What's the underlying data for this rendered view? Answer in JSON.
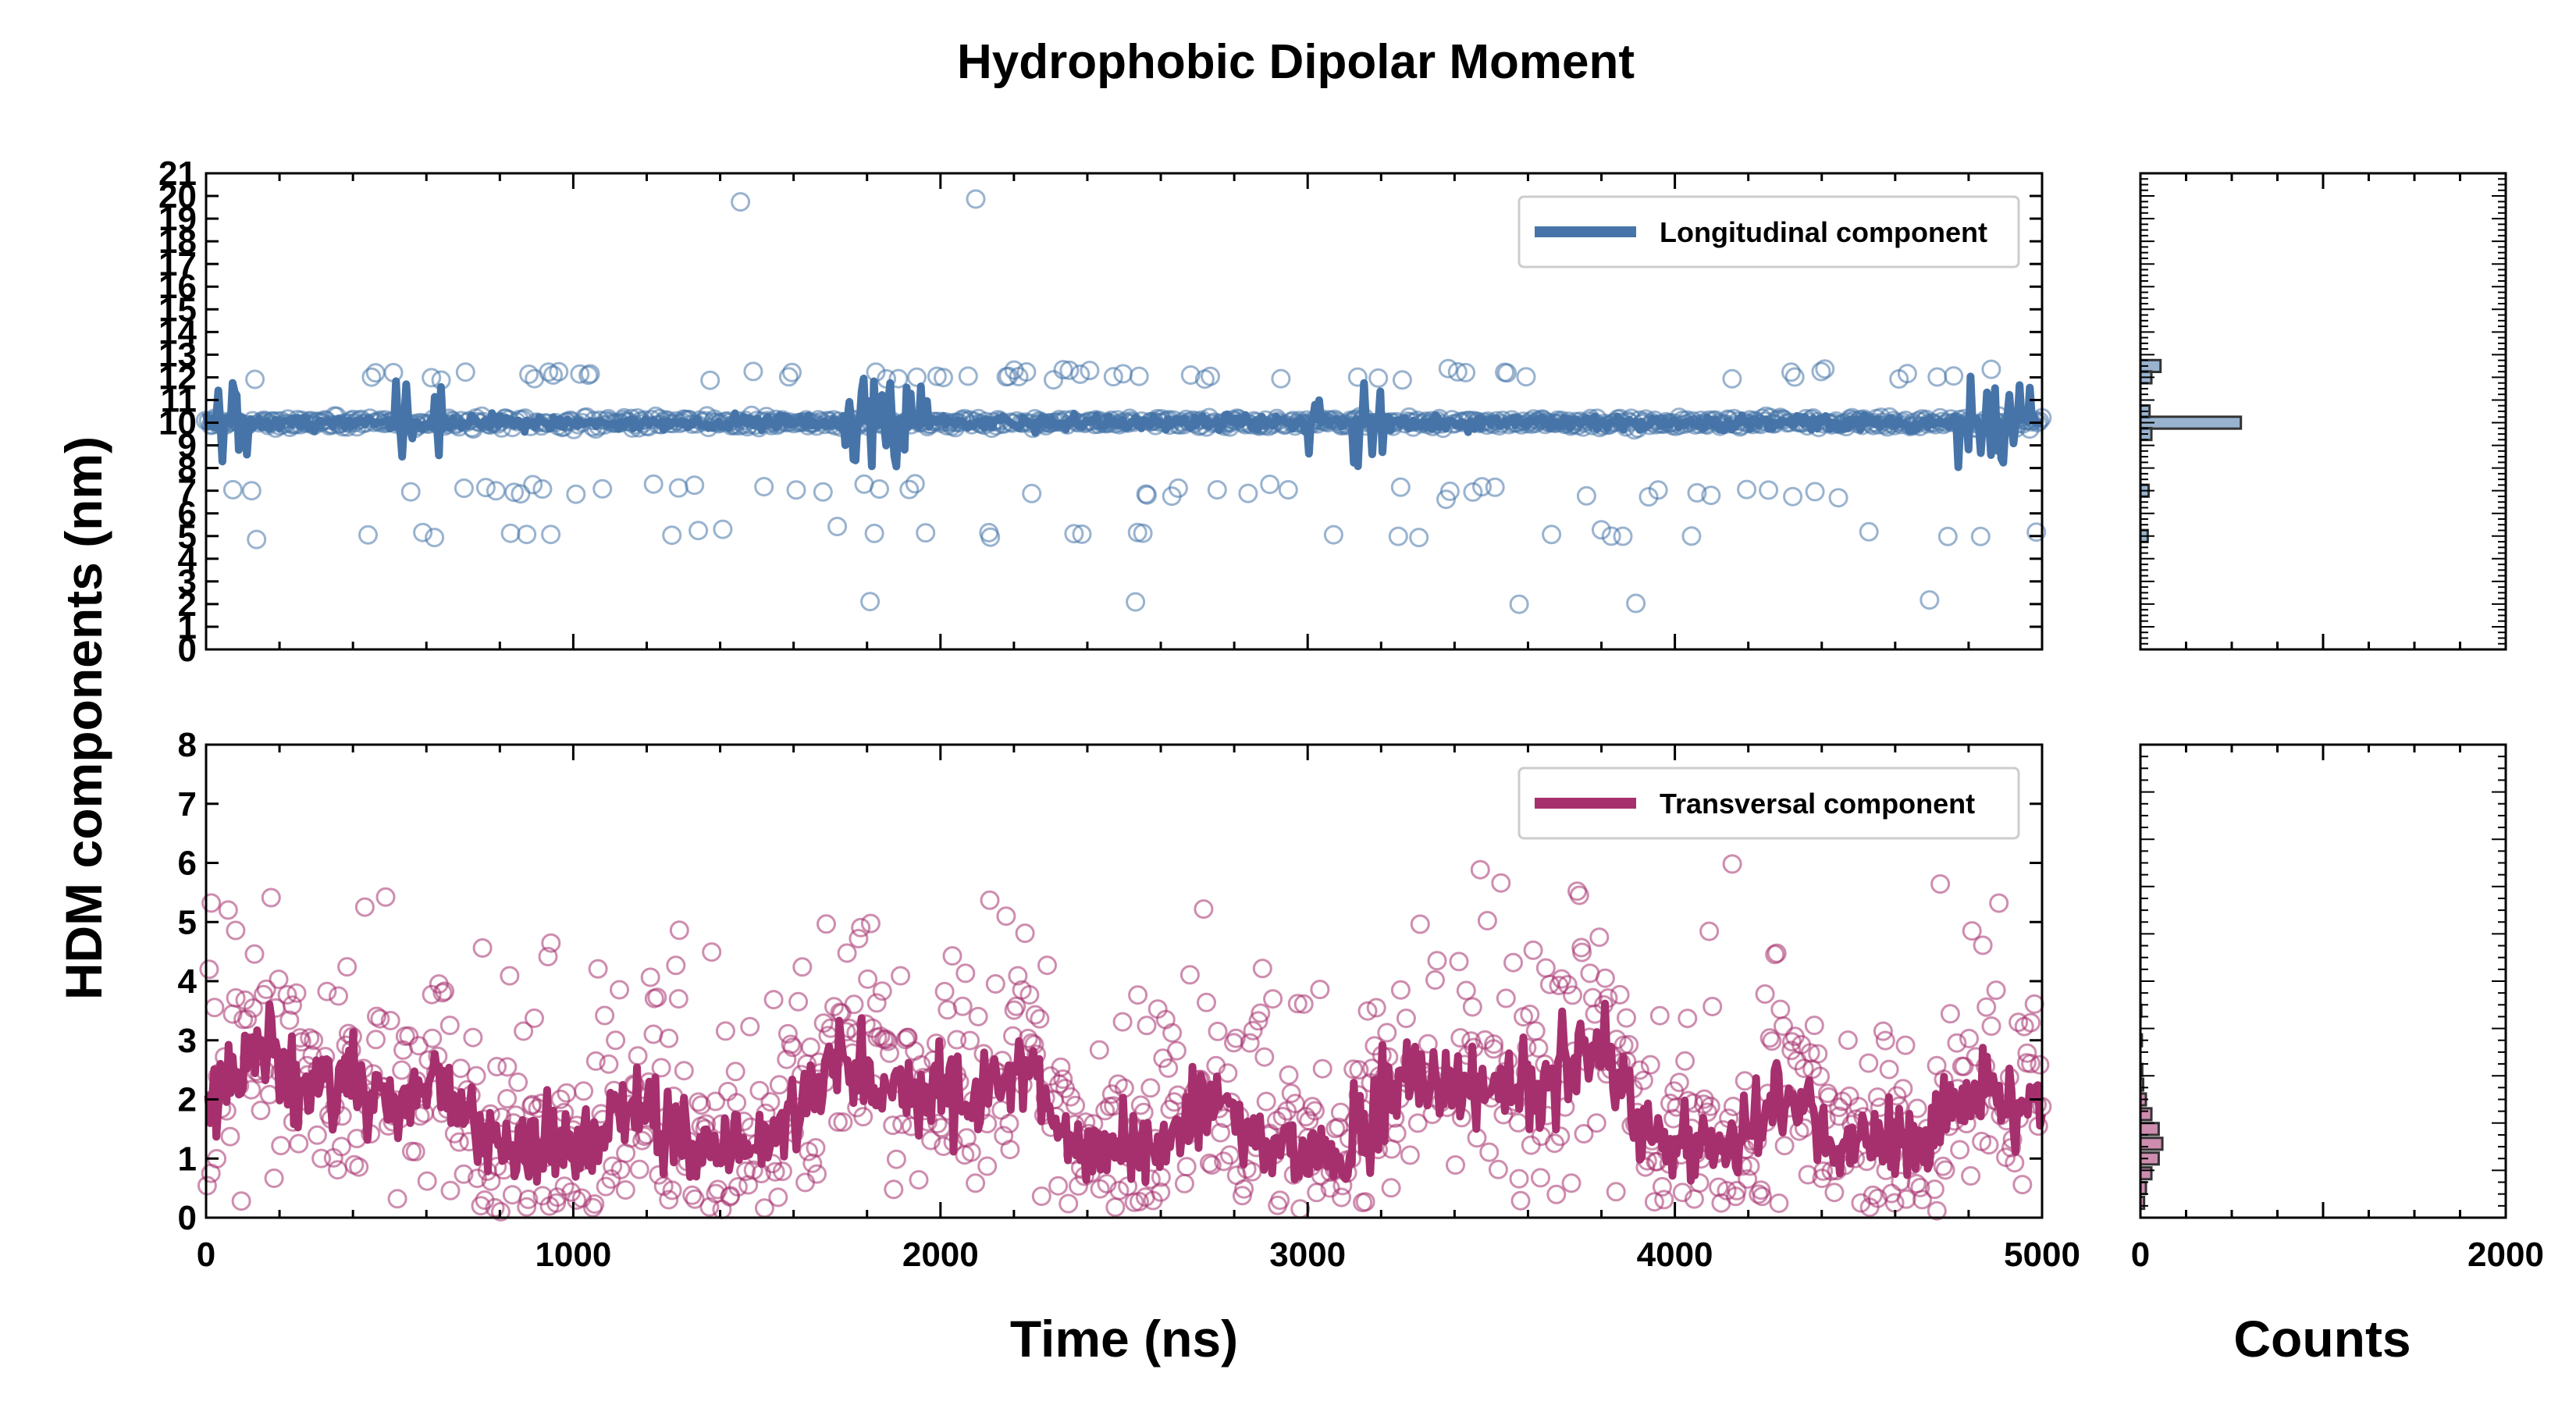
{
  "chart_data": {
    "type": "scatter",
    "title": "Hydrophobic Dipolar Moment",
    "ylabel": "HDM components (nm)",
    "xlabel": "Time (ns)",
    "hist_xlabel": "Counts",
    "panels": [
      {
        "name": "longitudinal",
        "legend": "Longitudinal component",
        "color": "#4674a8",
        "xlim": [
          0,
          5000
        ],
        "ylim": [
          0,
          21
        ],
        "yticks": [
          "0",
          "1",
          "2",
          "3",
          "4",
          "5",
          "6",
          "7",
          "8",
          "9",
          "10",
          "11",
          "12",
          "13",
          "14",
          "15",
          "16",
          "17",
          "18",
          "19",
          "20",
          "21"
        ],
        "xticks": [],
        "hist_xlim": [
          0,
          2000
        ],
        "histogram": [
          {
            "bin": 12.5,
            "count": 110
          },
          {
            "bin": 12.0,
            "count": 60
          },
          {
            "bin": 10.5,
            "count": 50
          },
          {
            "bin": 10.0,
            "count": 550
          },
          {
            "bin": 9.5,
            "count": 60
          },
          {
            "bin": 7.0,
            "count": 45
          },
          {
            "bin": 5.0,
            "count": 40
          }
        ]
      },
      {
        "name": "transversal",
        "legend": "Transversal component",
        "color": "#a6306e",
        "xlim": [
          0,
          5000
        ],
        "ylim": [
          0,
          8
        ],
        "yticks": [
          "0",
          "1",
          "2",
          "3",
          "4",
          "5",
          "6",
          "7",
          "8"
        ],
        "xticks": [
          "0",
          "1000",
          "2000",
          "3000",
          "4000",
          "5000"
        ],
        "hist_xticks": [
          "0",
          "2000"
        ],
        "hist_xlim": [
          0,
          2000
        ],
        "histogram": [
          {
            "bin": 0.25,
            "count": 20
          },
          {
            "bin": 0.5,
            "count": 30
          },
          {
            "bin": 0.75,
            "count": 60
          },
          {
            "bin": 1.0,
            "count": 100
          },
          {
            "bin": 1.25,
            "count": 120
          },
          {
            "bin": 1.5,
            "count": 100
          },
          {
            "bin": 1.75,
            "count": 60
          },
          {
            "bin": 2.0,
            "count": 30
          },
          {
            "bin": 2.25,
            "count": 15
          },
          {
            "bin": 2.5,
            "count": 10
          },
          {
            "bin": 3.0,
            "count": 8
          },
          {
            "bin": 3.5,
            "count": 5
          }
        ]
      }
    ]
  }
}
